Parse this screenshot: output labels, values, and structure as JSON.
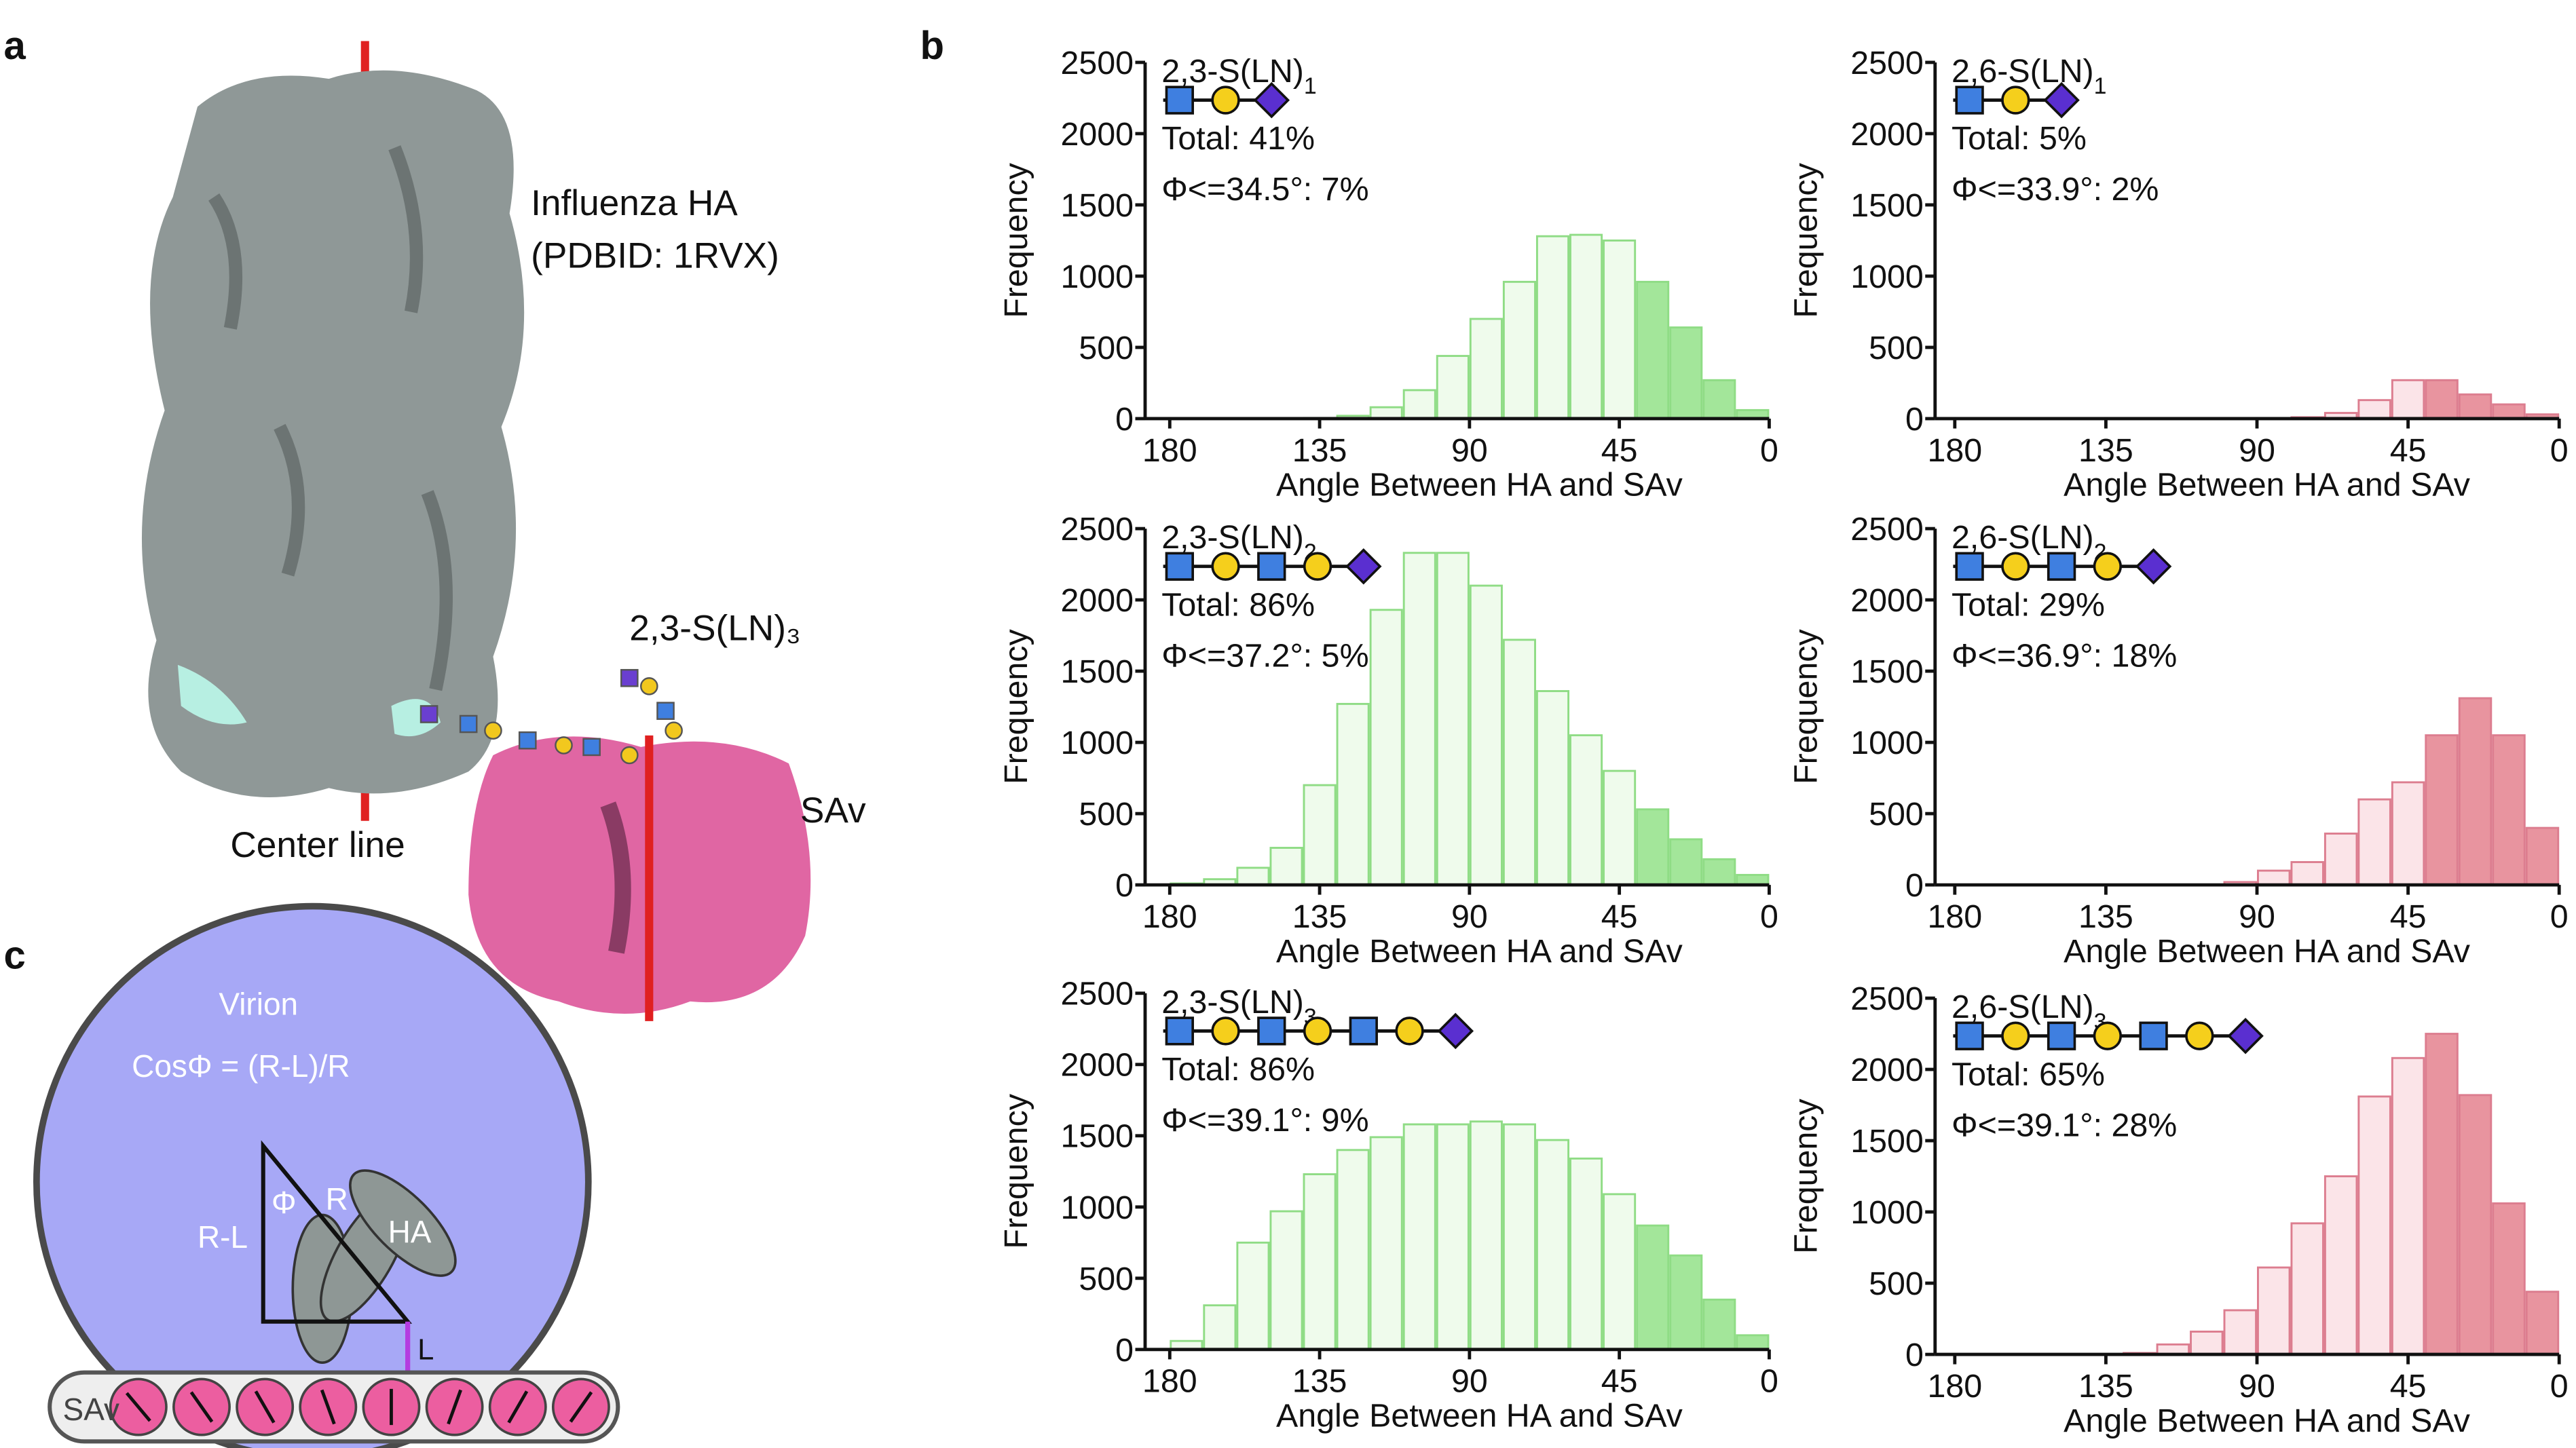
{
  "panel_labels": [
    "a",
    "b",
    "c"
  ],
  "illustrations": {
    "panel_a": {
      "protein": "Influenza HA",
      "pdb": "(PDBID: 1RVX)",
      "glycan": "2,3-S(LN)₃",
      "center_line": "Center line",
      "sav": "SAv"
    },
    "panel_c": {
      "virion": "Virion",
      "formula": "CosΦ = (R-L)/R",
      "phi": "Φ",
      "r": "R",
      "r_minus_l": "R-L",
      "ha": "HA",
      "l": "L",
      "sav": "SAv"
    }
  },
  "chart_data": [
    {
      "type": "histogram",
      "title": "2,3-S(LN)",
      "title_subscript": "1",
      "annotations": [
        "Total: 41%",
        "Φ<=34.5°: 7%"
      ],
      "xlabel": "Angle Between HA and SAv",
      "ylabel": "Frequency",
      "bins": [
        0,
        10,
        20,
        30,
        40,
        50,
        60,
        70,
        80,
        90,
        100,
        110,
        120,
        130,
        140,
        150,
        160,
        170,
        180
      ],
      "counts": [
        60,
        270,
        640,
        960,
        1250,
        1290,
        1280,
        960,
        700,
        440,
        200,
        80,
        20,
        5,
        0,
        0,
        0,
        0
      ],
      "colors": [
        "#a3e69a",
        "#a3e69a",
        "#a3e69a",
        "#a3e69a",
        "#effbec",
        "#effbec",
        "#effbec",
        "#effbec",
        "#effbec",
        "#effbec",
        "#effbec",
        "#effbec",
        "#effbec",
        "#effbec",
        "#effbec",
        "#effbec",
        "#effbec",
        "#effbec"
      ],
      "edge_color": "#8fdc85",
      "xlim": [
        180,
        0
      ],
      "ylim": [
        0,
        2500
      ],
      "xticks": [
        180,
        135,
        90,
        45,
        0
      ],
      "yticks": [
        0,
        500,
        1000,
        1500,
        2000,
        2500
      ]
    },
    {
      "type": "histogram",
      "title": "2,6-S(LN)",
      "title_subscript": "1",
      "annotations": [
        "Total: 5%",
        "Φ<=33.9°: 2%"
      ],
      "xlabel": "Angle Between HA and SAv",
      "ylabel": "Frequency",
      "bins": [
        0,
        10,
        20,
        30,
        40,
        50,
        60,
        70,
        80,
        90,
        100,
        110,
        120,
        130,
        140,
        150,
        160,
        170,
        180
      ],
      "counts": [
        30,
        100,
        170,
        270,
        270,
        130,
        40,
        10,
        0,
        0,
        0,
        0,
        0,
        0,
        0,
        0,
        0,
        0
      ],
      "colors": [
        "#e8949f",
        "#e8949f",
        "#e8949f",
        "#e8949f",
        "#fbe4e8",
        "#fbe4e8",
        "#fbe4e8",
        "#fbe4e8",
        "#fbe4e8",
        "#fbe4e8",
        "#fbe4e8",
        "#fbe4e8",
        "#fbe4e8",
        "#fbe4e8",
        "#fbe4e8",
        "#fbe4e8",
        "#fbe4e8",
        "#fbe4e8"
      ],
      "edge_color": "#dc7d8f",
      "xlim": [
        180,
        0
      ],
      "ylim": [
        0,
        2500
      ],
      "xticks": [
        180,
        135,
        90,
        45,
        0
      ],
      "yticks": [
        0,
        500,
        1000,
        1500,
        2000,
        2500
      ]
    },
    {
      "type": "histogram",
      "title": "2,3-S(LN)",
      "title_subscript": "2",
      "annotations": [
        "Total: 86%",
        "Φ<=37.2°: 5%"
      ],
      "xlabel": "Angle Between HA and SAv",
      "ylabel": "Frequency",
      "bins": [
        0,
        10,
        20,
        30,
        40,
        50,
        60,
        70,
        80,
        90,
        100,
        110,
        120,
        130,
        140,
        150,
        160,
        170,
        180
      ],
      "counts": [
        70,
        180,
        320,
        530,
        800,
        1050,
        1360,
        1720,
        2100,
        2330,
        2330,
        1930,
        1270,
        700,
        260,
        120,
        40,
        10
      ],
      "colors": [
        "#a3e69a",
        "#a3e69a",
        "#a3e69a",
        "#a3e69a",
        "#effbec",
        "#effbec",
        "#effbec",
        "#effbec",
        "#effbec",
        "#effbec",
        "#effbec",
        "#effbec",
        "#effbec",
        "#effbec",
        "#effbec",
        "#effbec",
        "#effbec",
        "#effbec"
      ],
      "edge_color": "#8fdc85",
      "xlim": [
        180,
        0
      ],
      "ylim": [
        0,
        2500
      ],
      "xticks": [
        180,
        135,
        90,
        45,
        0
      ],
      "yticks": [
        0,
        500,
        1000,
        1500,
        2000,
        2500
      ]
    },
    {
      "type": "histogram",
      "title": "2,6-S(LN)",
      "title_subscript": "2",
      "annotations": [
        "Total: 29%",
        "Φ<=36.9°: 18%"
      ],
      "xlabel": "Angle Between HA and SAv",
      "ylabel": "Frequency",
      "bins": [
        0,
        10,
        20,
        30,
        40,
        50,
        60,
        70,
        80,
        90,
        100,
        110,
        120,
        130,
        140,
        150,
        160,
        170,
        180
      ],
      "counts": [
        400,
        1050,
        1310,
        1050,
        720,
        600,
        360,
        160,
        100,
        20,
        0,
        0,
        0,
        0,
        0,
        0,
        0,
        0
      ],
      "colors": [
        "#e8949f",
        "#e8949f",
        "#e8949f",
        "#e8949f",
        "#fbe4e8",
        "#fbe4e8",
        "#fbe4e8",
        "#fbe4e8",
        "#fbe4e8",
        "#fbe4e8",
        "#fbe4e8",
        "#fbe4e8",
        "#fbe4e8",
        "#fbe4e8",
        "#fbe4e8",
        "#fbe4e8",
        "#fbe4e8",
        "#fbe4e8"
      ],
      "edge_color": "#dc7d8f",
      "xlim": [
        180,
        0
      ],
      "ylim": [
        0,
        2500
      ],
      "xticks": [
        180,
        135,
        90,
        45,
        0
      ],
      "yticks": [
        0,
        500,
        1000,
        1500,
        2000,
        2500
      ]
    },
    {
      "type": "histogram",
      "title": "2,3-S(LN)",
      "title_subscript": "3",
      "annotations": [
        "Total: 86%",
        "Φ<=39.1°: 9%"
      ],
      "xlabel": "Angle Between HA and SAv",
      "ylabel": "Frequency",
      "bins": [
        0,
        10,
        20,
        30,
        40,
        50,
        60,
        70,
        80,
        90,
        100,
        110,
        120,
        130,
        140,
        150,
        160,
        170,
        180
      ],
      "counts": [
        100,
        350,
        660,
        870,
        1090,
        1340,
        1470,
        1580,
        1600,
        1580,
        1580,
        1490,
        1400,
        1230,
        970,
        750,
        310,
        60
      ],
      "colors": [
        "#a3e69a",
        "#a3e69a",
        "#a3e69a",
        "#a3e69a",
        "#effbec",
        "#effbec",
        "#effbec",
        "#effbec",
        "#effbec",
        "#effbec",
        "#effbec",
        "#effbec",
        "#effbec",
        "#effbec",
        "#effbec",
        "#effbec",
        "#effbec",
        "#effbec"
      ],
      "edge_color": "#8fdc85",
      "xlim": [
        180,
        0
      ],
      "ylim": [
        0,
        2500
      ],
      "xticks": [
        180,
        135,
        90,
        45,
        0
      ],
      "yticks": [
        0,
        500,
        1000,
        1500,
        2000,
        2500
      ]
    },
    {
      "type": "histogram",
      "title": "2,6-S(LN)",
      "title_subscript": "3",
      "annotations": [
        "Total: 65%",
        "Φ<=39.1°: 28%"
      ],
      "xlabel": "Angle Between HA and SAv",
      "ylabel": "Frequency",
      "bins": [
        0,
        10,
        20,
        30,
        40,
        50,
        60,
        70,
        80,
        90,
        100,
        110,
        120,
        130,
        140,
        150,
        160,
        170,
        180
      ],
      "counts": [
        440,
        1060,
        1820,
        2250,
        2080,
        1810,
        1250,
        920,
        610,
        310,
        160,
        70,
        10,
        0,
        0,
        0,
        0,
        0
      ],
      "colors": [
        "#e8949f",
        "#e8949f",
        "#e8949f",
        "#e8949f",
        "#fbe4e8",
        "#fbe4e8",
        "#fbe4e8",
        "#fbe4e8",
        "#fbe4e8",
        "#fbe4e8",
        "#fbe4e8",
        "#fbe4e8",
        "#fbe4e8",
        "#fbe4e8",
        "#fbe4e8",
        "#fbe4e8",
        "#fbe4e8",
        "#fbe4e8"
      ],
      "edge_color": "#dc7d8f",
      "xlim": [
        180,
        0
      ],
      "ylim": [
        0,
        2500
      ],
      "xticks": [
        180,
        135,
        90,
        45,
        0
      ],
      "yticks": [
        0,
        500,
        1000,
        1500,
        2000,
        2500
      ]
    }
  ]
}
